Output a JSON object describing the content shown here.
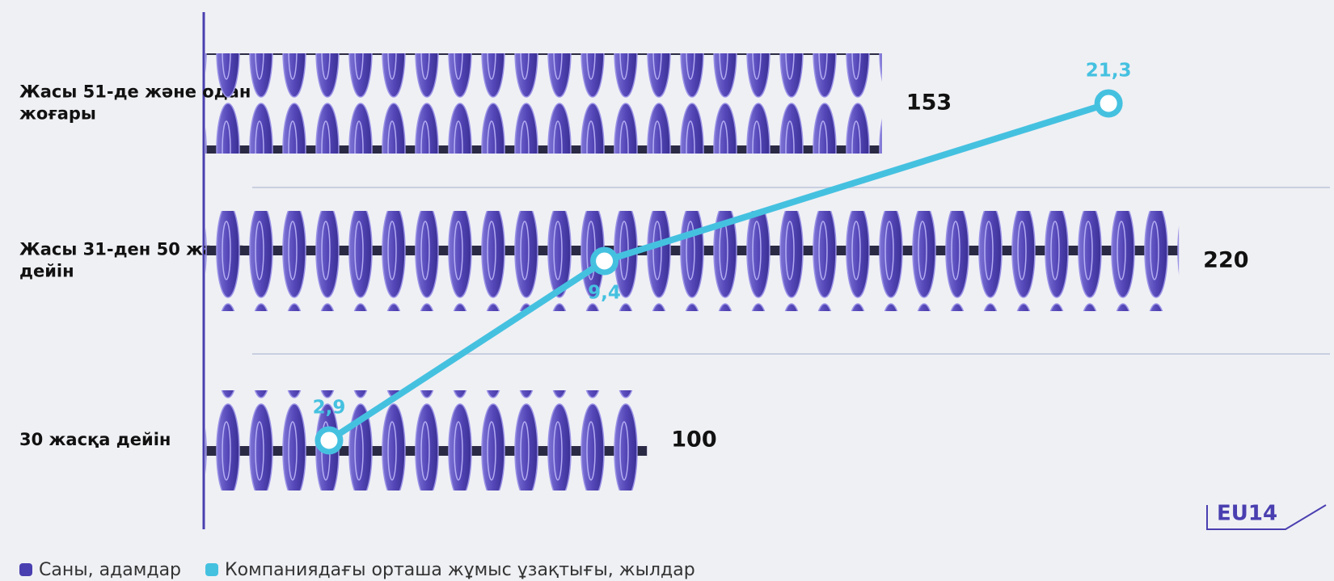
{
  "chart_data": {
    "type": "bar",
    "orientation": "horizontal",
    "categories": [
      "Жасы 51-де және одан жоғары",
      "Жасы 31-ден 50 жасқа дейін",
      "30 жасқа дейін"
    ],
    "xlim": [
      0,
      230
    ],
    "x2lim": [
      0,
      25
    ],
    "series": [
      {
        "name": "Саны, адамдар",
        "color": "#4a3fb0",
        "type": "bar",
        "values": [
          153,
          220,
          100
        ]
      },
      {
        "name": "Компаниядағы орташа жұмыс ұзақтығы, жылдар",
        "color": "#45c1e0",
        "type": "line",
        "axis": "x2",
        "values": [
          21.3,
          9.4,
          2.9
        ],
        "value_labels": [
          "21,3",
          "9,4",
          "2,9"
        ]
      }
    ],
    "badge": "EU14"
  }
}
